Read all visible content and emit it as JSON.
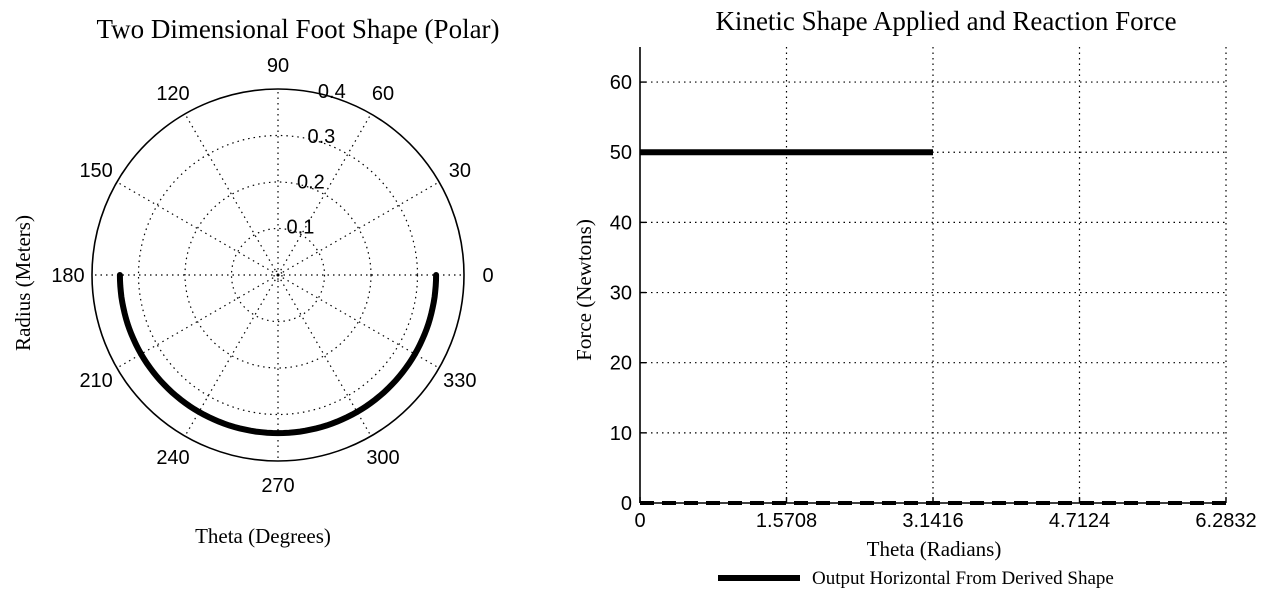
{
  "chart_data": [
    {
      "type": "polar",
      "title": "Two Dimensional Foot Shape (Polar)",
      "xlabel": "Theta (Degrees)",
      "ylabel": "Radius (Meters)",
      "rlim": [
        0,
        0.4
      ],
      "radial_ticks": [
        "0.1",
        "0.2",
        "0.3",
        "0.4"
      ],
      "radial_tick_values": [
        0.1,
        0.2,
        0.3,
        0.4
      ],
      "angle_ticks": [
        "0",
        "30",
        "60",
        "90",
        "120",
        "150",
        "180",
        "210",
        "240",
        "270",
        "300",
        "330"
      ],
      "angle_tick_values": [
        0,
        30,
        60,
        90,
        120,
        150,
        180,
        210,
        240,
        270,
        300,
        330
      ],
      "grid": true,
      "series": [
        {
          "theta_deg": [
            0,
            180
          ],
          "r": [
            0.34,
            0.34
          ],
          "r_at_270": 0.34,
          "direction": "lower-half"
        }
      ]
    },
    {
      "type": "line",
      "title": "Kinetic Shape Applied and Reaction Force",
      "xlabel": "Theta (Radians)",
      "ylabel": "Force (Newtons)",
      "xlim": [
        0,
        6.2832
      ],
      "ylim": [
        0,
        65
      ],
      "xticks": [
        0,
        1.5708,
        3.1416,
        4.7124,
        6.2832
      ],
      "xtick_labels": [
        "0",
        "1.5708",
        "3.1416",
        "4.7124",
        "6.2832"
      ],
      "yticks": [
        0,
        10,
        20,
        30,
        40,
        50,
        60
      ],
      "ytick_labels": [
        "0",
        "10",
        "20",
        "30",
        "40",
        "50",
        "60"
      ],
      "grid": true,
      "legend_position": "bottom",
      "legend": [
        "Output Horizontal From Derived Shape"
      ],
      "series": [
        {
          "name": "Output Horizontal From Derived Shape",
          "style": "solid",
          "x": [
            0,
            3.1416
          ],
          "y": [
            50,
            50
          ]
        },
        {
          "style": "dashed",
          "x": [
            0,
            6.2832
          ],
          "y": [
            0,
            0
          ]
        }
      ]
    }
  ]
}
